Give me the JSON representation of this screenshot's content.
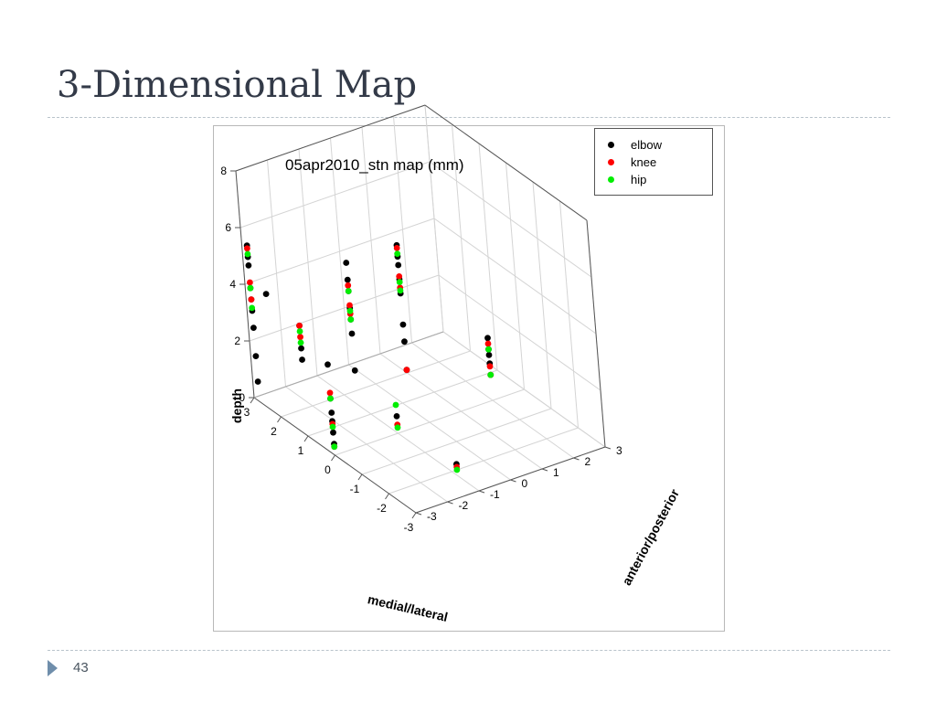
{
  "slide": {
    "title": "3-Dimensional Map",
    "page_number": "43"
  },
  "chart_data": {
    "type": "scatter",
    "title": "05apr2010_stn map (mm)",
    "xlabel": "medial/lateral",
    "ylabel": "anterior/posterior",
    "zlabel": "depth",
    "xlim": [
      -3,
      3
    ],
    "ylim": [
      -3,
      3
    ],
    "zlim": [
      0,
      8
    ],
    "x_ticks": [
      "3",
      "2",
      "1",
      "0",
      "-1",
      "-2",
      "-3"
    ],
    "y_ticks": [
      "-3",
      "-2",
      "-1",
      "0",
      "1",
      "2",
      "3"
    ],
    "z_ticks": [
      "0",
      "2",
      "4",
      "6",
      "8"
    ],
    "grid": true,
    "legend_position": "top-right",
    "series": [
      {
        "name": "elbow",
        "color": "#000000",
        "points": [
          [
            2.8,
            -3,
            5.5
          ],
          [
            2.8,
            -3,
            5.1
          ],
          [
            2.8,
            -3,
            4.8
          ],
          [
            2.8,
            -3,
            4.0
          ],
          [
            2.8,
            -3,
            3.6
          ],
          [
            2.8,
            -3,
            3.2
          ],
          [
            2.8,
            -3,
            2.6
          ],
          [
            2.8,
            -3,
            1.6
          ],
          [
            2.8,
            -3,
            0.7
          ],
          [
            2.2,
            -3,
            4.2
          ],
          [
            1.5,
            -2.6,
            3.4
          ],
          [
            1.5,
            -2.6,
            2.6
          ],
          [
            1.5,
            -2.6,
            2.2
          ],
          [
            0,
            -3,
            3.2
          ],
          [
            0,
            -3,
            2.0
          ],
          [
            0,
            -3,
            1.5
          ],
          [
            0,
            -3,
            1.2
          ],
          [
            0,
            -3,
            0.8
          ],
          [
            0,
            -3,
            0.4
          ],
          [
            1.5,
            -1,
            5.0
          ],
          [
            1.5,
            -1,
            4.4
          ],
          [
            1.5,
            -1,
            4.0
          ],
          [
            1.5,
            -1,
            3.4
          ],
          [
            1.5,
            -1,
            3.0
          ],
          [
            1.5,
            -1,
            2.5
          ],
          [
            1.5,
            -1,
            1.2
          ],
          [
            0,
            -1,
            0.6
          ],
          [
            1.5,
            0.6,
            5.0
          ],
          [
            1.5,
            0.6,
            4.6
          ],
          [
            1.5,
            0.6,
            4.3
          ],
          [
            1.5,
            0.6,
            3.8
          ],
          [
            1.5,
            0.6,
            3.3
          ],
          [
            1.5,
            0.6,
            2.2
          ],
          [
            1.5,
            0.6,
            1.6
          ],
          [
            1.5,
            0.6,
            0.6
          ],
          [
            0,
            2,
            2.2
          ],
          [
            0,
            2,
            1.8
          ],
          [
            0,
            2,
            1.6
          ],
          [
            0,
            2,
            1.3
          ],
          [
            0,
            2,
            0.9
          ],
          [
            -2.2,
            -1,
            0.4
          ]
        ]
      },
      {
        "name": "knee",
        "color": "#ff0000",
        "points": [
          [
            2.8,
            -3,
            5.4
          ],
          [
            2.8,
            -3,
            4.2
          ],
          [
            2.8,
            -3,
            3.6
          ],
          [
            1.5,
            -2.6,
            3.4
          ],
          [
            1.5,
            -2.6,
            3.0
          ],
          [
            0,
            -3,
            2.2
          ],
          [
            0,
            -3,
            1.1
          ],
          [
            0,
            -3,
            0.3
          ],
          [
            1.5,
            -1,
            4.2
          ],
          [
            1.5,
            -1,
            3.5
          ],
          [
            1.5,
            -1,
            3.2
          ],
          [
            0,
            -1,
            0.3
          ],
          [
            1.5,
            0.6,
            4.9
          ],
          [
            1.5,
            0.6,
            3.9
          ],
          [
            1.5,
            0.6,
            3.5
          ],
          [
            1.5,
            0.6,
            0.6
          ],
          [
            0,
            2,
            2.0
          ],
          [
            0,
            2,
            1.2
          ],
          [
            0,
            2,
            0.9
          ],
          [
            -2.2,
            -1,
            0.3
          ]
        ]
      },
      {
        "name": "hip",
        "color": "#00ee00",
        "points": [
          [
            2.8,
            -3,
            5.2
          ],
          [
            2.8,
            -3,
            4.0
          ],
          [
            2.8,
            -3,
            3.3
          ],
          [
            1.5,
            -2.6,
            3.2
          ],
          [
            1.5,
            -2.6,
            2.8
          ],
          [
            0,
            -3,
            2.0
          ],
          [
            0,
            -3,
            1.0
          ],
          [
            0,
            -3,
            0.3
          ],
          [
            1.5,
            -1,
            4.0
          ],
          [
            1.5,
            -1,
            3.3
          ],
          [
            1.5,
            -1,
            3.0
          ],
          [
            0,
            -1,
            1.0
          ],
          [
            0,
            -1,
            0.2
          ],
          [
            1.5,
            0.6,
            4.7
          ],
          [
            1.5,
            0.6,
            3.7
          ],
          [
            1.5,
            0.6,
            3.4
          ],
          [
            0,
            2,
            1.8
          ],
          [
            0,
            2,
            0.9
          ],
          [
            -2.2,
            -1,
            0.2
          ]
        ]
      }
    ]
  }
}
